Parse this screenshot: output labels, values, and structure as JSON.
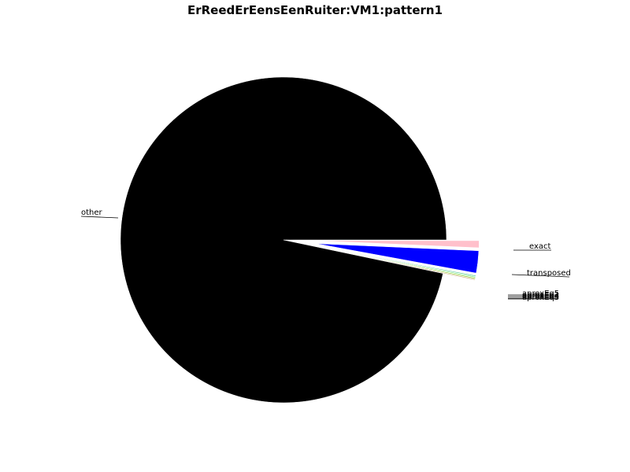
{
  "chart_data": {
    "type": "pie",
    "title": "ErReedErEensEenRuiter:VM1:pattern1",
    "slices": [
      {
        "label": "exact",
        "value": 0.7,
        "color": "#ffc0cb",
        "exploded": true
      },
      {
        "label": "transposed",
        "value": 2.2,
        "color": "#0000ff",
        "exploded": true
      },
      {
        "label": "aproxEq5",
        "value": 0.1,
        "color": "#66cdaa",
        "exploded": true
      },
      {
        "label": "aproxEq4",
        "value": 0.1,
        "color": "#90ee90",
        "exploded": true
      },
      {
        "label": "aproxEq3",
        "value": 0.1,
        "color": "#9acd32",
        "exploded": true
      },
      {
        "label": "aproxEq2",
        "value": 0.1,
        "color": "#d2b48c",
        "exploded": true
      },
      {
        "label": "other",
        "value": 96.7,
        "color": "#000000",
        "exploded": false
      }
    ],
    "start_angle_deg": 0,
    "direction": "clockwise",
    "legend": "none"
  }
}
